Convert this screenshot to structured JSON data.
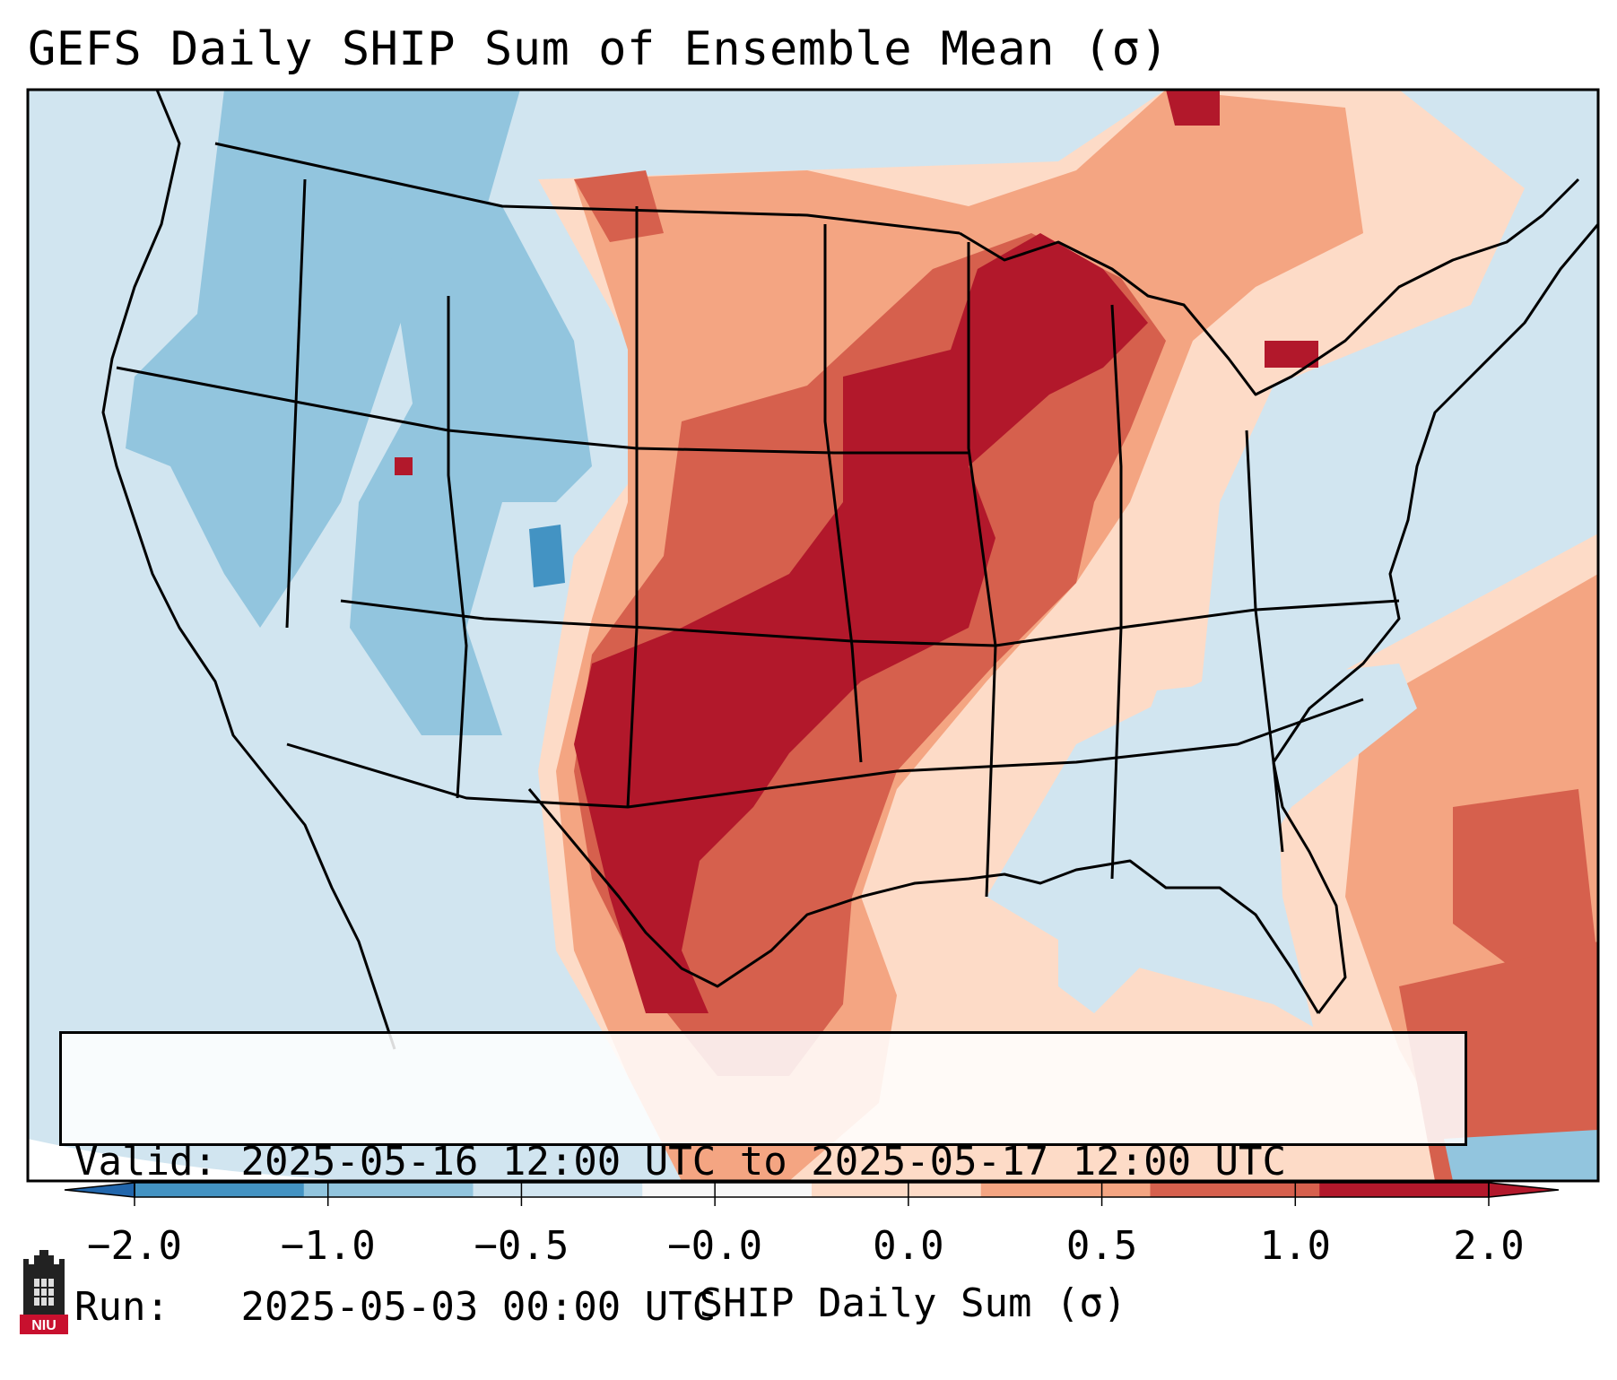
{
  "title": "GEFS Daily SHIP Sum of Ensemble Mean (σ)",
  "info": {
    "valid_label": "Valid:",
    "valid_value": "2025-05-16 12:00 UTC to 2025-05-17 12:00 UTC",
    "run_label": "Run:",
    "run_value": "2025-05-03 00:00 UTC"
  },
  "colorbar": {
    "label": "SHIP Daily Sum (σ)",
    "ticks": [
      "−2.0",
      "−1.0",
      "−0.5",
      "−0.0",
      "0.0",
      "0.5",
      "1.0",
      "2.0"
    ],
    "colors": [
      "#4393c3",
      "#92c5de",
      "#d1e5f0",
      "#f7f7f7",
      "#fddbc7",
      "#f4a582",
      "#d6604d",
      "#b2182b"
    ],
    "extend": "both"
  },
  "logo": {
    "text": "NIU",
    "icon": "niu-castle-icon"
  }
}
